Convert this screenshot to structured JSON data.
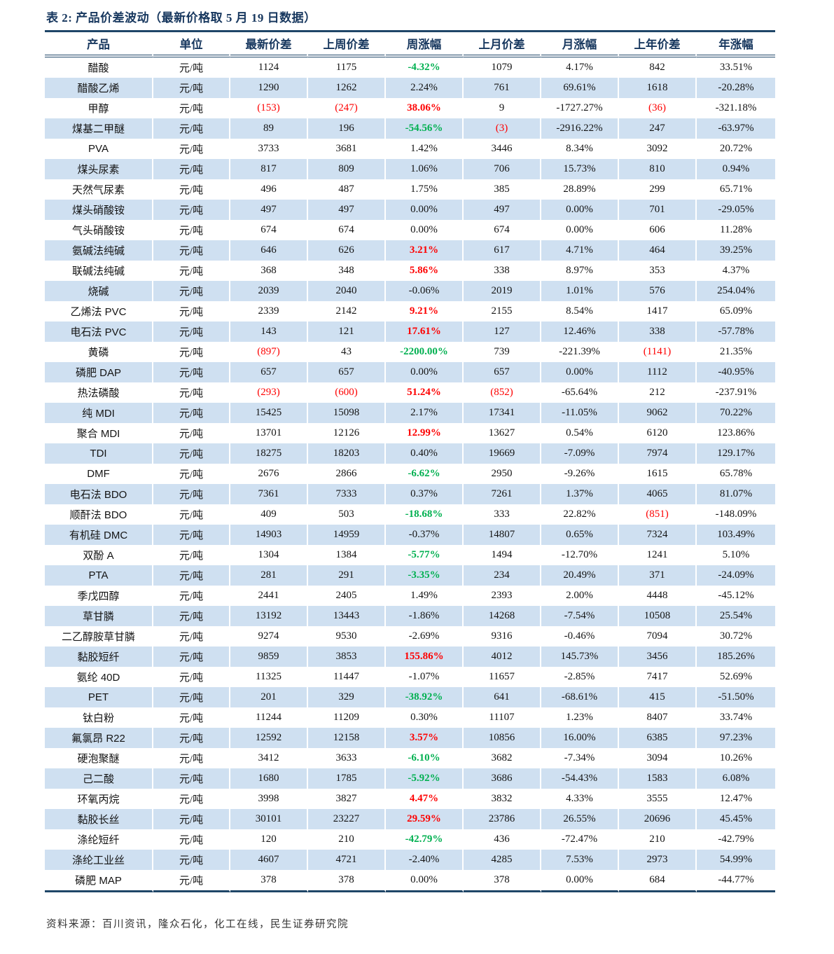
{
  "table": {
    "title": "表 2: 产品价差波动（最新价格取 5 月 19 日数据）",
    "source": "资料来源：百川资讯，隆众石化，化工在线，民生证券研究院",
    "columns": [
      "产品",
      "单位",
      "最新价差",
      "上周价差",
      "周涨幅",
      "上月价差",
      "月涨幅",
      "上年价差",
      "年涨幅"
    ],
    "colors": {
      "title_navy": "#17375e",
      "rule_navy": "#1f4668",
      "stripe_blue": "#cfe0f1",
      "positive_red": "#fe0000",
      "negative_green": "#00b050",
      "text_black": "#141414"
    },
    "rows": [
      {
        "product": "醋酸",
        "unit": "元/吨",
        "latest_spread": "1124",
        "last_week_spread": "1175",
        "week_change": "-4.32%",
        "week_change_style": "green",
        "last_month_spread": "1079",
        "month_change": "4.17%",
        "last_year_spread": "842",
        "year_change": "33.51%"
      },
      {
        "product": "醋酸乙烯",
        "unit": "元/吨",
        "latest_spread": "1290",
        "last_week_spread": "1262",
        "week_change": "2.24%",
        "week_change_style": "none",
        "last_month_spread": "761",
        "month_change": "69.61%",
        "last_year_spread": "1618",
        "year_change": "-20.28%"
      },
      {
        "product": "甲醇",
        "unit": "元/吨",
        "latest_spread": "(153)",
        "last_week_spread": "(247)",
        "week_change": "38.06%",
        "week_change_style": "red",
        "last_month_spread": "9",
        "month_change": "-1727.27%",
        "last_year_spread": "(36)",
        "year_change": "-321.18%"
      },
      {
        "product": "煤基二甲醚",
        "unit": "元/吨",
        "latest_spread": "89",
        "last_week_spread": "196",
        "week_change": "-54.56%",
        "week_change_style": "green",
        "last_month_spread": "(3)",
        "month_change": "-2916.22%",
        "last_year_spread": "247",
        "year_change": "-63.97%"
      },
      {
        "product": "PVA",
        "unit": "元/吨",
        "latest_spread": "3733",
        "last_week_spread": "3681",
        "week_change": "1.42%",
        "week_change_style": "none",
        "last_month_spread": "3446",
        "month_change": "8.34%",
        "last_year_spread": "3092",
        "year_change": "20.72%"
      },
      {
        "product": "煤头尿素",
        "unit": "元/吨",
        "latest_spread": "817",
        "last_week_spread": "809",
        "week_change": "1.06%",
        "week_change_style": "none",
        "last_month_spread": "706",
        "month_change": "15.73%",
        "last_year_spread": "810",
        "year_change": "0.94%"
      },
      {
        "product": "天然气尿素",
        "unit": "元/吨",
        "latest_spread": "496",
        "last_week_spread": "487",
        "week_change": "1.75%",
        "week_change_style": "none",
        "last_month_spread": "385",
        "month_change": "28.89%",
        "last_year_spread": "299",
        "year_change": "65.71%"
      },
      {
        "product": "煤头硝酸铵",
        "unit": "元/吨",
        "latest_spread": "497",
        "last_week_spread": "497",
        "week_change": "0.00%",
        "week_change_style": "none",
        "last_month_spread": "497",
        "month_change": "0.00%",
        "last_year_spread": "701",
        "year_change": "-29.05%"
      },
      {
        "product": "气头硝酸铵",
        "unit": "元/吨",
        "latest_spread": "674",
        "last_week_spread": "674",
        "week_change": "0.00%",
        "week_change_style": "none",
        "last_month_spread": "674",
        "month_change": "0.00%",
        "last_year_spread": "606",
        "year_change": "11.28%"
      },
      {
        "product": "氨碱法纯碱",
        "unit": "元/吨",
        "latest_spread": "646",
        "last_week_spread": "626",
        "week_change": "3.21%",
        "week_change_style": "red",
        "last_month_spread": "617",
        "month_change": "4.71%",
        "last_year_spread": "464",
        "year_change": "39.25%"
      },
      {
        "product": "联碱法纯碱",
        "unit": "元/吨",
        "latest_spread": "368",
        "last_week_spread": "348",
        "week_change": "5.86%",
        "week_change_style": "red",
        "last_month_spread": "338",
        "month_change": "8.97%",
        "last_year_spread": "353",
        "year_change": "4.37%"
      },
      {
        "product": "烧碱",
        "unit": "元/吨",
        "latest_spread": "2039",
        "last_week_spread": "2040",
        "week_change": "-0.06%",
        "week_change_style": "none",
        "last_month_spread": "2019",
        "month_change": "1.01%",
        "last_year_spread": "576",
        "year_change": "254.04%"
      },
      {
        "product": "乙烯法 PVC",
        "unit": "元/吨",
        "latest_spread": "2339",
        "last_week_spread": "2142",
        "week_change": "9.21%",
        "week_change_style": "red",
        "last_month_spread": "2155",
        "month_change": "8.54%",
        "last_year_spread": "1417",
        "year_change": "65.09%"
      },
      {
        "product": "电石法 PVC",
        "unit": "元/吨",
        "latest_spread": "143",
        "last_week_spread": "121",
        "week_change": "17.61%",
        "week_change_style": "red",
        "last_month_spread": "127",
        "month_change": "12.46%",
        "last_year_spread": "338",
        "year_change": "-57.78%"
      },
      {
        "product": "黄磷",
        "unit": "元/吨",
        "latest_spread": "(897)",
        "last_week_spread": "43",
        "week_change": "-2200.00%",
        "week_change_style": "green",
        "last_month_spread": "739",
        "month_change": "-221.39%",
        "last_year_spread": "(1141)",
        "year_change": "21.35%"
      },
      {
        "product": "磷肥 DAP",
        "unit": "元/吨",
        "latest_spread": "657",
        "last_week_spread": "657",
        "week_change": "0.00%",
        "week_change_style": "none",
        "last_month_spread": "657",
        "month_change": "0.00%",
        "last_year_spread": "1112",
        "year_change": "-40.95%"
      },
      {
        "product": "热法磷酸",
        "unit": "元/吨",
        "latest_spread": "(293)",
        "last_week_spread": "(600)",
        "week_change": "51.24%",
        "week_change_style": "red",
        "last_month_spread": "(852)",
        "month_change": "-65.64%",
        "last_year_spread": "212",
        "year_change": "-237.91%"
      },
      {
        "product": "纯 MDI",
        "unit": "元/吨",
        "latest_spread": "15425",
        "last_week_spread": "15098",
        "week_change": "2.17%",
        "week_change_style": "none",
        "last_month_spread": "17341",
        "month_change": "-11.05%",
        "last_year_spread": "9062",
        "year_change": "70.22%"
      },
      {
        "product": "聚合 MDI",
        "unit": "元/吨",
        "latest_spread": "13701",
        "last_week_spread": "12126",
        "week_change": "12.99%",
        "week_change_style": "red",
        "last_month_spread": "13627",
        "month_change": "0.54%",
        "last_year_spread": "6120",
        "year_change": "123.86%"
      },
      {
        "product": "TDI",
        "unit": "元/吨",
        "latest_spread": "18275",
        "last_week_spread": "18203",
        "week_change": "0.40%",
        "week_change_style": "none",
        "last_month_spread": "19669",
        "month_change": "-7.09%",
        "last_year_spread": "7974",
        "year_change": "129.17%"
      },
      {
        "product": "DMF",
        "unit": "元/吨",
        "latest_spread": "2676",
        "last_week_spread": "2866",
        "week_change": "-6.62%",
        "week_change_style": "green",
        "last_month_spread": "2950",
        "month_change": "-9.26%",
        "last_year_spread": "1615",
        "year_change": "65.78%"
      },
      {
        "product": "电石法 BDO",
        "unit": "元/吨",
        "latest_spread": "7361",
        "last_week_spread": "7333",
        "week_change": "0.37%",
        "week_change_style": "none",
        "last_month_spread": "7261",
        "month_change": "1.37%",
        "last_year_spread": "4065",
        "year_change": "81.07%"
      },
      {
        "product": "顺酐法 BDO",
        "unit": "元/吨",
        "latest_spread": "409",
        "last_week_spread": "503",
        "week_change": "-18.68%",
        "week_change_style": "green",
        "last_month_spread": "333",
        "month_change": "22.82%",
        "last_year_spread": "(851)",
        "year_change": "-148.09%"
      },
      {
        "product": "有机硅 DMC",
        "unit": "元/吨",
        "latest_spread": "14903",
        "last_week_spread": "14959",
        "week_change": "-0.37%",
        "week_change_style": "none",
        "last_month_spread": "14807",
        "month_change": "0.65%",
        "last_year_spread": "7324",
        "year_change": "103.49%"
      },
      {
        "product": "双酚 A",
        "unit": "元/吨",
        "latest_spread": "1304",
        "last_week_spread": "1384",
        "week_change": "-5.77%",
        "week_change_style": "green",
        "last_month_spread": "1494",
        "month_change": "-12.70%",
        "last_year_spread": "1241",
        "year_change": "5.10%"
      },
      {
        "product": "PTA",
        "unit": "元/吨",
        "latest_spread": "281",
        "last_week_spread": "291",
        "week_change": "-3.35%",
        "week_change_style": "green",
        "last_month_spread": "234",
        "month_change": "20.49%",
        "last_year_spread": "371",
        "year_change": "-24.09%"
      },
      {
        "product": "季戊四醇",
        "unit": "元/吨",
        "latest_spread": "2441",
        "last_week_spread": "2405",
        "week_change": "1.49%",
        "week_change_style": "none",
        "last_month_spread": "2393",
        "month_change": "2.00%",
        "last_year_spread": "4448",
        "year_change": "-45.12%"
      },
      {
        "product": "草甘膦",
        "unit": "元/吨",
        "latest_spread": "13192",
        "last_week_spread": "13443",
        "week_change": "-1.86%",
        "week_change_style": "none",
        "last_month_spread": "14268",
        "month_change": "-7.54%",
        "last_year_spread": "10508",
        "year_change": "25.54%"
      },
      {
        "product": "二乙醇胺草甘膦",
        "unit": "元/吨",
        "latest_spread": "9274",
        "last_week_spread": "9530",
        "week_change": "-2.69%",
        "week_change_style": "none",
        "last_month_spread": "9316",
        "month_change": "-0.46%",
        "last_year_spread": "7094",
        "year_change": "30.72%"
      },
      {
        "product": "黏胶短纤",
        "unit": "元/吨",
        "latest_spread": "9859",
        "last_week_spread": "3853",
        "week_change": "155.86%",
        "week_change_style": "red",
        "last_month_spread": "4012",
        "month_change": "145.73%",
        "last_year_spread": "3456",
        "year_change": "185.26%"
      },
      {
        "product": "氨纶 40D",
        "unit": "元/吨",
        "latest_spread": "11325",
        "last_week_spread": "11447",
        "week_change": "-1.07%",
        "week_change_style": "none",
        "last_month_spread": "11657",
        "month_change": "-2.85%",
        "last_year_spread": "7417",
        "year_change": "52.69%"
      },
      {
        "product": "PET",
        "unit": "元/吨",
        "latest_spread": "201",
        "last_week_spread": "329",
        "week_change": "-38.92%",
        "week_change_style": "green",
        "last_month_spread": "641",
        "month_change": "-68.61%",
        "last_year_spread": "415",
        "year_change": "-51.50%"
      },
      {
        "product": "钛白粉",
        "unit": "元/吨",
        "latest_spread": "11244",
        "last_week_spread": "11209",
        "week_change": "0.30%",
        "week_change_style": "none",
        "last_month_spread": "11107",
        "month_change": "1.23%",
        "last_year_spread": "8407",
        "year_change": "33.74%"
      },
      {
        "product": "氟氯昂 R22",
        "unit": "元/吨",
        "latest_spread": "12592",
        "last_week_spread": "12158",
        "week_change": "3.57%",
        "week_change_style": "red",
        "last_month_spread": "10856",
        "month_change": "16.00%",
        "last_year_spread": "6385",
        "year_change": "97.23%"
      },
      {
        "product": "硬泡聚醚",
        "unit": "元/吨",
        "latest_spread": "3412",
        "last_week_spread": "3633",
        "week_change": "-6.10%",
        "week_change_style": "green",
        "last_month_spread": "3682",
        "month_change": "-7.34%",
        "last_year_spread": "3094",
        "year_change": "10.26%"
      },
      {
        "product": "己二酸",
        "unit": "元/吨",
        "latest_spread": "1680",
        "last_week_spread": "1785",
        "week_change": "-5.92%",
        "week_change_style": "green",
        "last_month_spread": "3686",
        "month_change": "-54.43%",
        "last_year_spread": "1583",
        "year_change": "6.08%"
      },
      {
        "product": "环氧丙烷",
        "unit": "元/吨",
        "latest_spread": "3998",
        "last_week_spread": "3827",
        "week_change": "4.47%",
        "week_change_style": "red",
        "last_month_spread": "3832",
        "month_change": "4.33%",
        "last_year_spread": "3555",
        "year_change": "12.47%"
      },
      {
        "product": "黏胶长丝",
        "unit": "元/吨",
        "latest_spread": "30101",
        "last_week_spread": "23227",
        "week_change": "29.59%",
        "week_change_style": "red",
        "last_month_spread": "23786",
        "month_change": "26.55%",
        "last_year_spread": "20696",
        "year_change": "45.45%"
      },
      {
        "product": "涤纶短纤",
        "unit": "元/吨",
        "latest_spread": "120",
        "last_week_spread": "210",
        "week_change": "-42.79%",
        "week_change_style": "green",
        "last_month_spread": "436",
        "month_change": "-72.47%",
        "last_year_spread": "210",
        "year_change": "-42.79%"
      },
      {
        "product": "涤纶工业丝",
        "unit": "元/吨",
        "latest_spread": "4607",
        "last_week_spread": "4721",
        "week_change": "-2.40%",
        "week_change_style": "none",
        "last_month_spread": "4285",
        "month_change": "7.53%",
        "last_year_spread": "2973",
        "year_change": "54.99%"
      },
      {
        "product": "磷肥 MAP",
        "unit": "元/吨",
        "latest_spread": "378",
        "last_week_spread": "378",
        "week_change": "0.00%",
        "week_change_style": "none",
        "last_month_spread": "378",
        "month_change": "0.00%",
        "last_year_spread": "684",
        "year_change": "-44.77%"
      }
    ]
  }
}
